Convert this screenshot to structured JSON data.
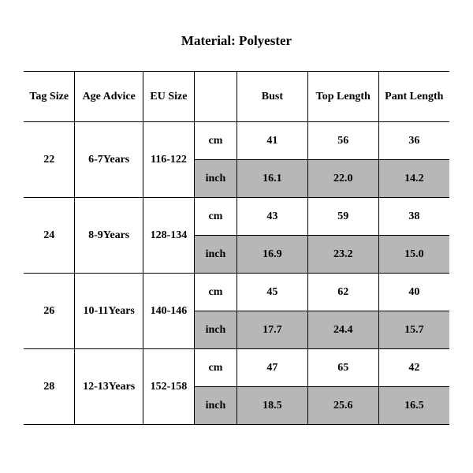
{
  "title": "Material: Polyester",
  "table": {
    "columns": [
      "Tag Size",
      "Age Advice",
      "EU Size",
      "",
      "Bust",
      "Top Length",
      "Pant Length"
    ],
    "unit_labels": {
      "cm": "cm",
      "inch": "inch"
    },
    "shade_color": "#b7b7b7",
    "border_color": "#000000",
    "background_color": "#ffffff",
    "font_family": "Times New Roman",
    "header_fontsize": 14,
    "title_fontsize": 17,
    "rows": [
      {
        "tag_size": "22",
        "age_advice": "6-7Years",
        "eu_size": "116-122",
        "cm": {
          "bust": "41",
          "top_length": "56",
          "pant_length": "36"
        },
        "inch": {
          "bust": "16.1",
          "top_length": "22.0",
          "pant_length": "14.2"
        }
      },
      {
        "tag_size": "24",
        "age_advice": "8-9Years",
        "eu_size": "128-134",
        "cm": {
          "bust": "43",
          "top_length": "59",
          "pant_length": "38"
        },
        "inch": {
          "bust": "16.9",
          "top_length": "23.2",
          "pant_length": "15.0"
        }
      },
      {
        "tag_size": "26",
        "age_advice": "10-11Years",
        "eu_size": "140-146",
        "cm": {
          "bust": "45",
          "top_length": "62",
          "pant_length": "40"
        },
        "inch": {
          "bust": "17.7",
          "top_length": "24.4",
          "pant_length": "15.7"
        }
      },
      {
        "tag_size": "28",
        "age_advice": "12-13Years",
        "eu_size": "152-158",
        "cm": {
          "bust": "47",
          "top_length": "65",
          "pant_length": "42"
        },
        "inch": {
          "bust": "18.5",
          "top_length": "25.6",
          "pant_length": "16.5"
        }
      }
    ]
  }
}
